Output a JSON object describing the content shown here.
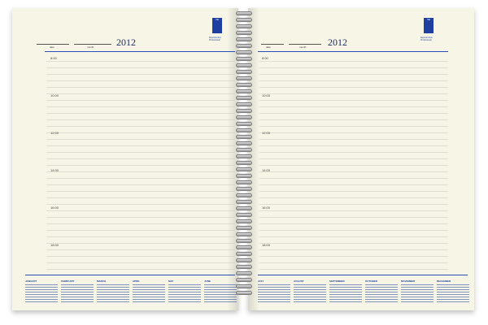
{
  "header": {
    "date_label": "date",
    "month_label": "month",
    "year": "2012"
  },
  "logo": {
    "mark": "VE",
    "caption": "Reproduction Professional"
  },
  "left_page": {
    "hours": [
      "8:00",
      "10:00",
      "12:00",
      "14:00",
      "16:00",
      "18:00"
    ],
    "months": [
      "JANUARY",
      "FEBRUARY",
      "MARCH",
      "APRIL",
      "MAY",
      "JUNE"
    ]
  },
  "right_page": {
    "hours": [
      "8:00",
      "10:00",
      "12:00",
      "14:00",
      "16:00",
      "18:00"
    ],
    "months": [
      "JULY",
      "AUGUST",
      "SEPTEMBER",
      "OCTOBER",
      "NOVEMBER",
      "DECEMBER"
    ]
  }
}
